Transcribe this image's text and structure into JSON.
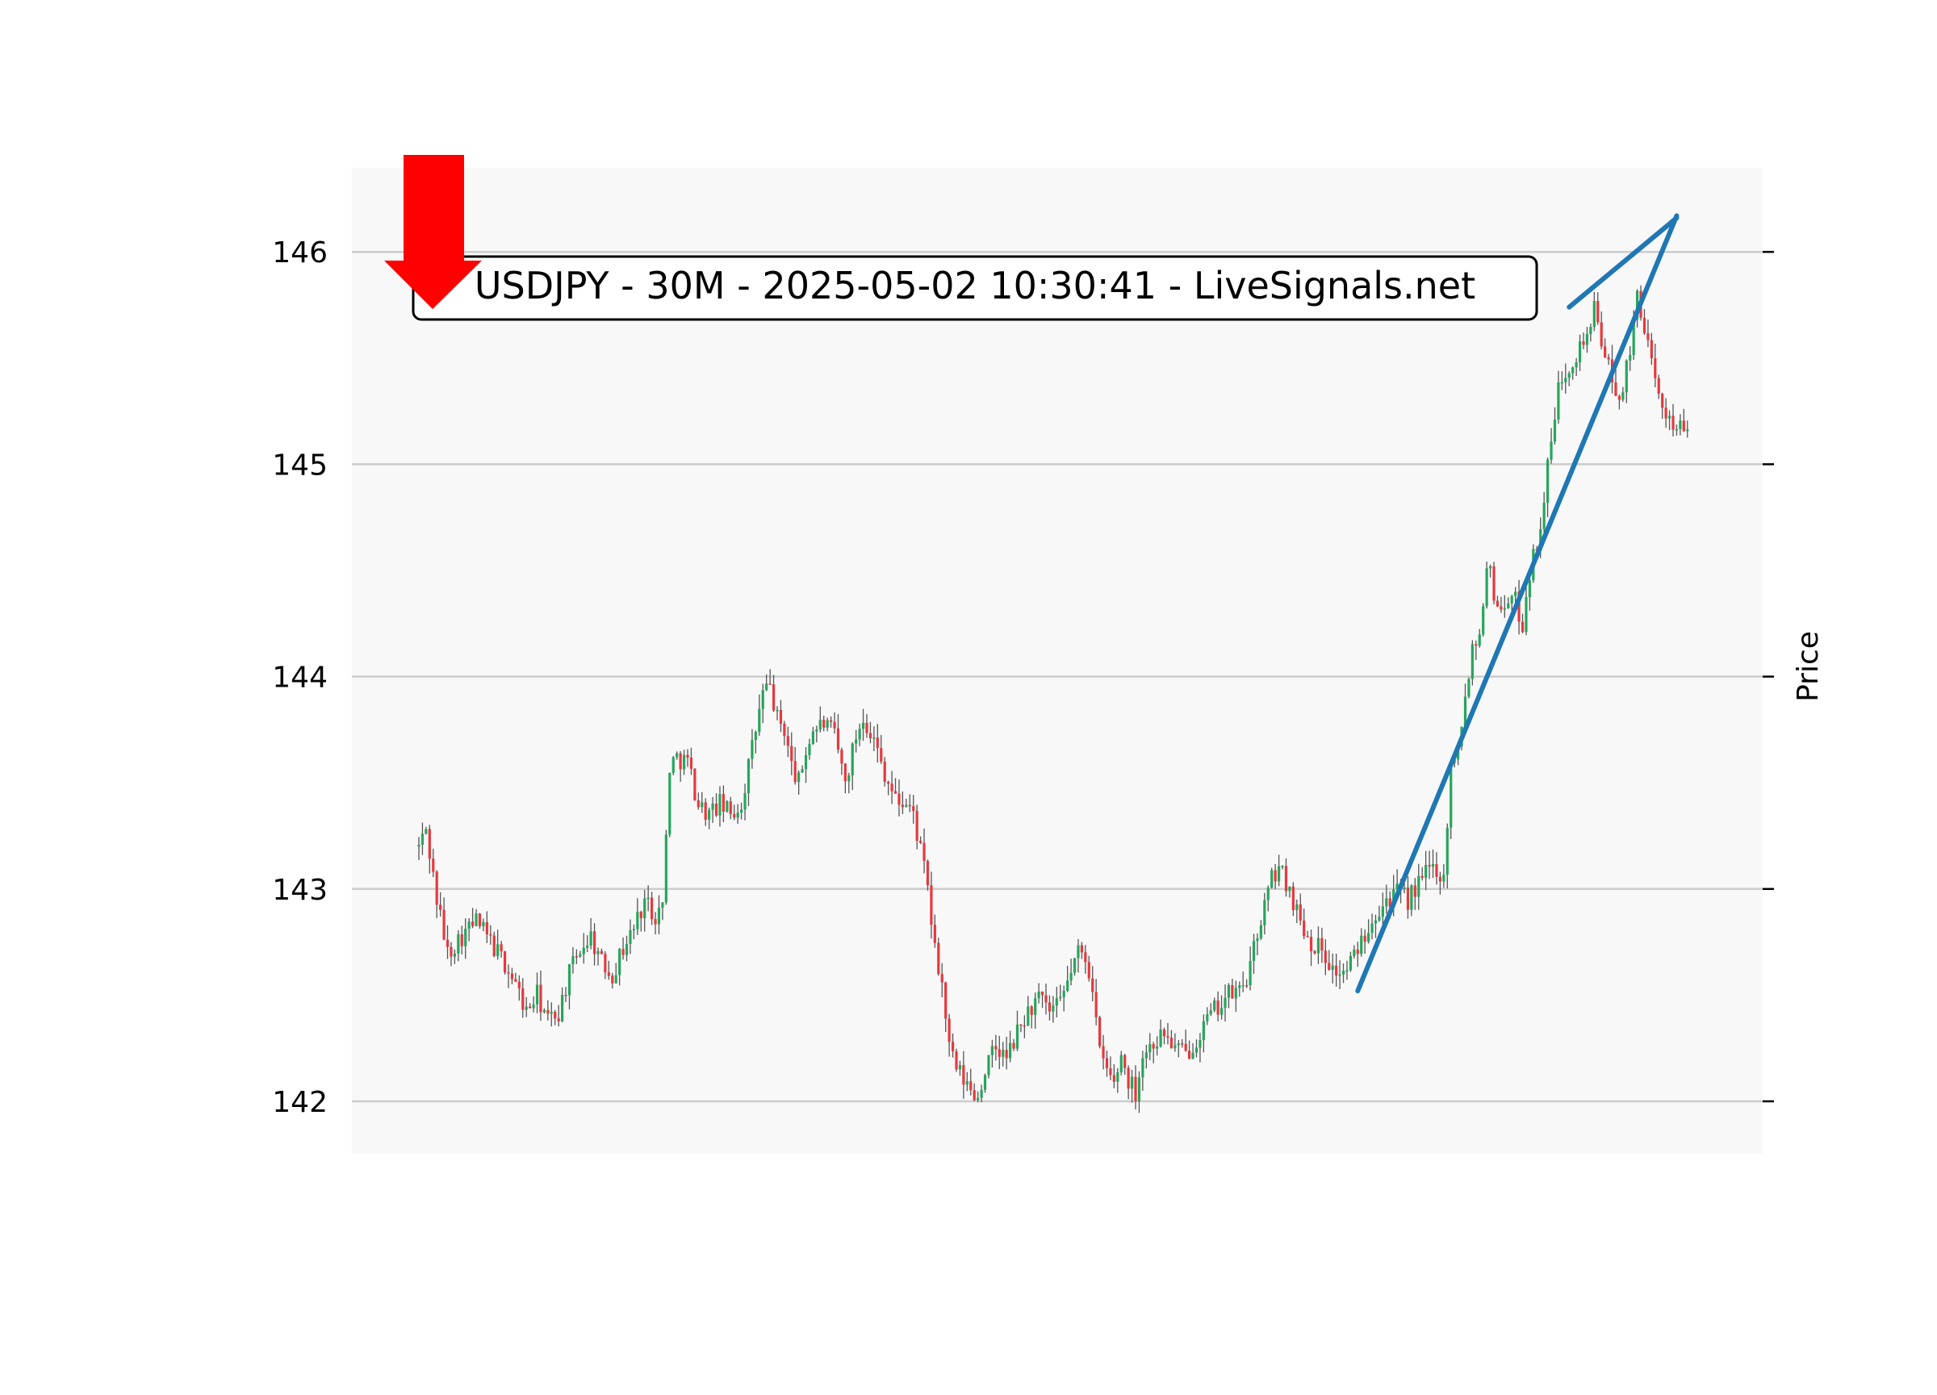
{
  "chart_data": {
    "type": "candlestick",
    "title": "USDJPY - 30M - 2025-05-02 10:30:41 - LiveSignals.net",
    "xlabel": "",
    "ylabel": "Price",
    "ylim": [
      141.75,
      146.4
    ],
    "yticks": [
      {
        "value": 142,
        "label": "142"
      },
      {
        "value": 143,
        "label": "143"
      },
      {
        "value": 144,
        "label": "144"
      },
      {
        "value": 145,
        "label": "145"
      },
      {
        "value": 146,
        "label": "146"
      }
    ],
    "grid": true,
    "y_axis_side": "right",
    "tick_label_side": "left",
    "colors": {
      "up": "#26a65b",
      "down": "#e8383d",
      "wick": "#555555",
      "trendline": "#1f77b4",
      "signal_arrow": "#ff0000",
      "grid": "#cccccc",
      "plot_background": "#f8f8f8"
    },
    "signal": {
      "direction": "down",
      "icon": "red-down-arrow"
    },
    "trendlines": [
      {
        "from": {
          "index": 262,
          "price": 142.52
        },
        "to": {
          "index": 351,
          "price": 146.17
        }
      },
      {
        "from": {
          "index": 321,
          "price": 145.74
        },
        "to": {
          "index": 351,
          "price": 146.16
        }
      }
    ],
    "price_path": [
      [
        0,
        143.2
      ],
      [
        2,
        143.28
      ],
      [
        5,
        142.95
      ],
      [
        8,
        142.7
      ],
      [
        12,
        142.78
      ],
      [
        16,
        142.85
      ],
      [
        20,
        142.75
      ],
      [
        24,
        142.65
      ],
      [
        27,
        142.55
      ],
      [
        30,
        142.42
      ],
      [
        33,
        142.5
      ],
      [
        36,
        142.38
      ],
      [
        39,
        142.42
      ],
      [
        42,
        142.6
      ],
      [
        45,
        142.72
      ],
      [
        48,
        142.78
      ],
      [
        51,
        142.65
      ],
      [
        54,
        142.6
      ],
      [
        57,
        142.72
      ],
      [
        60,
        142.82
      ],
      [
        63,
        142.95
      ],
      [
        66,
        142.88
      ],
      [
        68,
        142.92
      ],
      [
        70,
        143.58
      ],
      [
        72,
        143.62
      ],
      [
        75,
        143.6
      ],
      [
        78,
        143.4
      ],
      [
        81,
        143.35
      ],
      [
        84,
        143.4
      ],
      [
        87,
        143.35
      ],
      [
        90,
        143.4
      ],
      [
        92,
        143.58
      ],
      [
        94,
        143.75
      ],
      [
        96,
        143.92
      ],
      [
        98,
        143.95
      ],
      [
        100,
        143.8
      ],
      [
        102,
        143.75
      ],
      [
        104,
        143.58
      ],
      [
        106,
        143.5
      ],
      [
        108,
        143.65
      ],
      [
        110,
        143.75
      ],
      [
        113,
        143.78
      ],
      [
        116,
        143.72
      ],
      [
        119,
        143.5
      ],
      [
        122,
        143.72
      ],
      [
        124,
        143.82
      ],
      [
        127,
        143.7
      ],
      [
        130,
        143.55
      ],
      [
        133,
        143.42
      ],
      [
        136,
        143.4
      ],
      [
        138,
        143.35
      ],
      [
        140,
        143.18
      ],
      [
        142,
        143.0
      ],
      [
        144,
        142.7
      ],
      [
        146,
        142.55
      ],
      [
        148,
        142.25
      ],
      [
        150,
        142.15
      ],
      [
        152,
        142.1
      ],
      [
        154,
        142.05
      ],
      [
        156,
        142.02
      ],
      [
        158,
        142.15
      ],
      [
        161,
        142.25
      ],
      [
        164,
        142.2
      ],
      [
        167,
        142.32
      ],
      [
        170,
        142.42
      ],
      [
        173,
        142.48
      ],
      [
        176,
        142.42
      ],
      [
        179,
        142.45
      ],
      [
        182,
        142.62
      ],
      [
        184,
        142.7
      ],
      [
        186,
        142.68
      ],
      [
        188,
        142.55
      ],
      [
        190,
        142.22
      ],
      [
        192,
        142.15
      ],
      [
        194,
        142.08
      ],
      [
        196,
        142.22
      ],
      [
        198,
        142.1
      ],
      [
        200,
        142.05
      ],
      [
        202,
        142.22
      ],
      [
        205,
        142.28
      ],
      [
        208,
        142.32
      ],
      [
        211,
        142.25
      ],
      [
        214,
        142.22
      ],
      [
        217,
        142.3
      ],
      [
        220,
        142.38
      ],
      [
        223,
        142.45
      ],
      [
        226,
        142.5
      ],
      [
        229,
        142.52
      ],
      [
        232,
        142.62
      ],
      [
        234,
        142.8
      ],
      [
        236,
        142.92
      ],
      [
        238,
        143.05
      ],
      [
        240,
        143.1
      ],
      [
        243,
        143.0
      ],
      [
        246,
        142.85
      ],
      [
        249,
        142.75
      ],
      [
        252,
        142.72
      ],
      [
        255,
        142.62
      ],
      [
        258,
        142.6
      ],
      [
        261,
        142.68
      ],
      [
        264,
        142.8
      ],
      [
        267,
        142.9
      ],
      [
        270,
        142.95
      ],
      [
        273,
        142.98
      ],
      [
        276,
        142.95
      ],
      [
        279,
        143.02
      ],
      [
        282,
        143.1
      ],
      [
        284,
        143.1
      ],
      [
        286,
        143.05
      ],
      [
        288,
        143.58
      ],
      [
        290,
        143.7
      ],
      [
        292,
        143.9
      ],
      [
        294,
        144.15
      ],
      [
        296,
        144.2
      ],
      [
        298,
        144.55
      ],
      [
        300,
        144.4
      ],
      [
        302,
        144.3
      ],
      [
        304,
        144.38
      ],
      [
        306,
        144.35
      ],
      [
        308,
        144.25
      ],
      [
        310,
        144.5
      ],
      [
        312,
        144.62
      ],
      [
        314,
        144.85
      ],
      [
        316,
        145.1
      ],
      [
        318,
        145.35
      ],
      [
        320,
        145.45
      ],
      [
        322,
        145.5
      ],
      [
        324,
        145.55
      ],
      [
        326,
        145.62
      ],
      [
        328,
        145.72
      ],
      [
        330,
        145.6
      ],
      [
        332,
        145.45
      ],
      [
        334,
        145.3
      ],
      [
        336,
        145.38
      ],
      [
        338,
        145.5
      ],
      [
        340,
        145.82
      ],
      [
        342,
        145.65
      ],
      [
        344,
        145.45
      ],
      [
        346,
        145.3
      ],
      [
        348,
        145.25
      ],
      [
        350,
        145.2
      ],
      [
        352,
        145.18
      ],
      [
        354,
        145.12
      ]
    ]
  }
}
